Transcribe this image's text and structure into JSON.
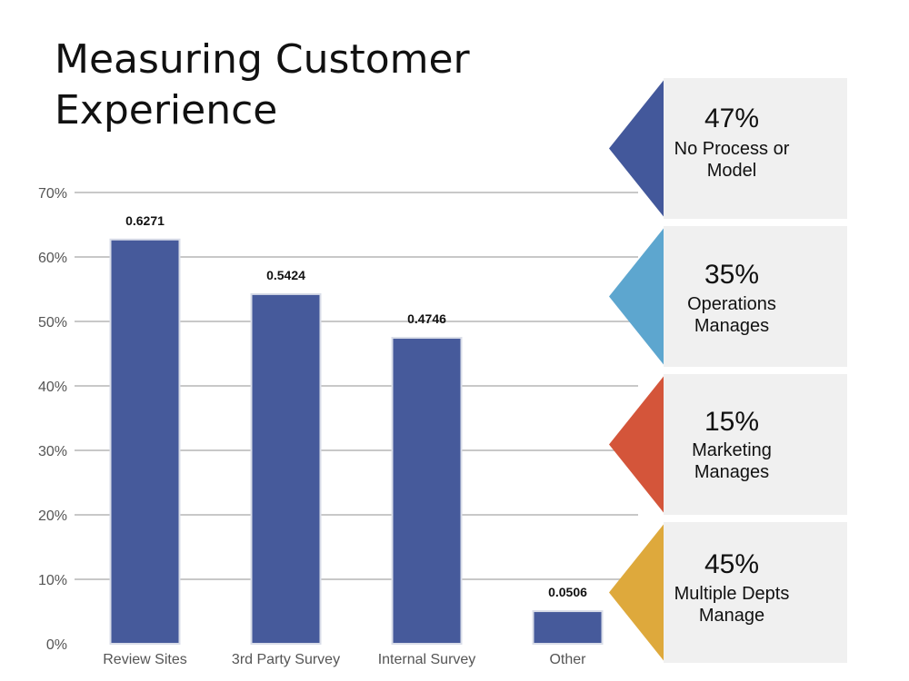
{
  "slide": {
    "title_line1": "Measuring Customer",
    "title_line2": "Experience"
  },
  "chart_data": {
    "type": "bar",
    "categories": [
      "Review Sites",
      "3rd Party Survey",
      "Internal Survey",
      "Other"
    ],
    "values": [
      0.6271,
      0.5424,
      0.4746,
      0.0506
    ],
    "value_labels": [
      "0.6271",
      "0.5424",
      "0.4746",
      "0.0506"
    ],
    "title": "",
    "xlabel": "",
    "ylabel": "",
    "ylim": [
      0,
      0.7
    ],
    "yticks": [
      0,
      0.1,
      0.2,
      0.3,
      0.4,
      0.5,
      0.6,
      0.7
    ],
    "ytick_labels": [
      "0%",
      "10%",
      "20%",
      "30%",
      "40%",
      "50%",
      "60%",
      "70%"
    ],
    "grid": true,
    "bar_color": "#465a9b",
    "grid_color": "#c8c8c8"
  },
  "callouts": [
    {
      "percent": "47%",
      "line1": "No Process or",
      "line2": "Model",
      "color": "#43589b"
    },
    {
      "percent": "35%",
      "line1": "Operations",
      "line2": "Manages",
      "color": "#5da6cf"
    },
    {
      "percent": "15%",
      "line1": "Marketing",
      "line2": "Manages",
      "color": "#d4553a"
    },
    {
      "percent": "45%",
      "line1": "Multiple Depts",
      "line2": "Manage",
      "color": "#dea93c"
    }
  ]
}
